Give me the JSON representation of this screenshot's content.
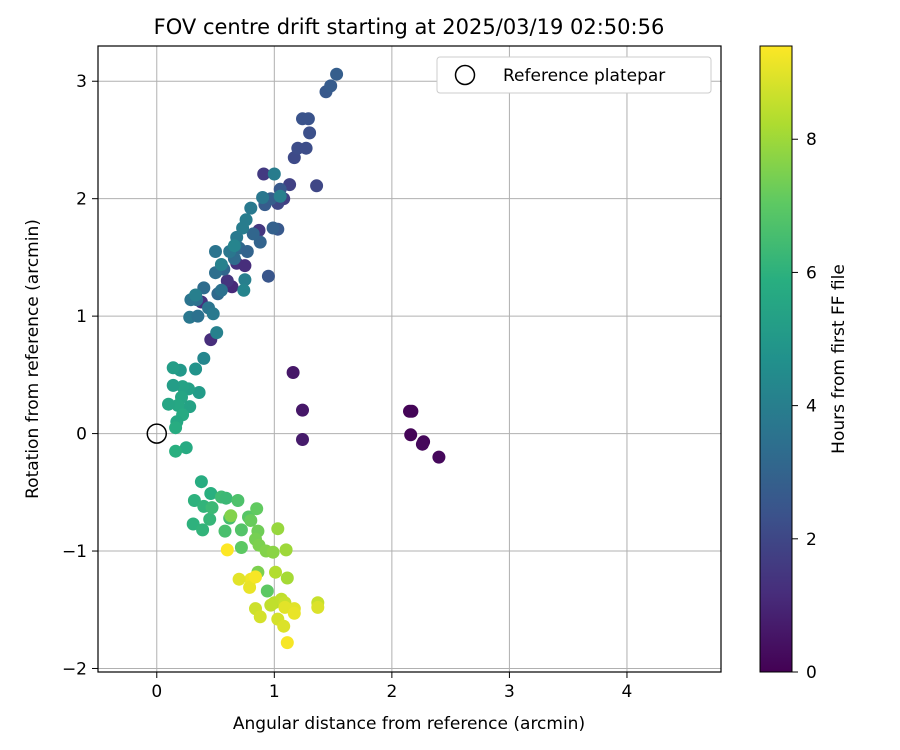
{
  "chart_data": {
    "type": "scatter",
    "title": "FOV centre drift starting at 2025/03/19 02:50:56",
    "xlabel": "Angular distance from reference (arcmin)",
    "ylabel": "Rotation from reference (arcmin)",
    "xlim": [
      -0.5,
      4.8
    ],
    "ylim": [
      -2.03,
      3.3
    ],
    "xticks": [
      0,
      1,
      2,
      3,
      4
    ],
    "yticks": [
      -2,
      -1,
      0,
      1,
      2,
      3
    ],
    "grid": true,
    "legend": {
      "placement": "top-right",
      "entries": [
        "Reference platepar"
      ]
    },
    "reference_point": {
      "name": "Reference platepar",
      "x": 0,
      "y": 0
    },
    "colorbar": {
      "label": "Hours from first FF file",
      "colormap": "viridis",
      "range": [
        0,
        9.4
      ],
      "ticks": [
        0,
        2,
        4,
        6,
        8
      ]
    },
    "series": [
      {
        "points": [
          {
            "x": 2.15,
            "y": 0.19,
            "c": 0.05
          },
          {
            "x": 2.17,
            "y": 0.19,
            "c": 0.1
          },
          {
            "x": 2.16,
            "y": -0.01,
            "c": 0.1
          },
          {
            "x": 2.27,
            "y": -0.07,
            "c": 0.15
          },
          {
            "x": 2.26,
            "y": -0.09,
            "c": 0.2
          },
          {
            "x": 2.4,
            "y": -0.2,
            "c": 0.2
          },
          {
            "x": 1.16,
            "y": 0.52,
            "c": 0.6
          },
          {
            "x": 1.24,
            "y": 0.2,
            "c": 0.6
          },
          {
            "x": 1.24,
            "y": -0.05,
            "c": 0.7
          },
          {
            "x": 0.46,
            "y": 0.8,
            "c": 1.2
          },
          {
            "x": 0.38,
            "y": 1.12,
            "c": 1.3
          },
          {
            "x": 0.64,
            "y": 1.25,
            "c": 1.1
          },
          {
            "x": 0.6,
            "y": 1.3,
            "c": 1.4
          },
          {
            "x": 0.68,
            "y": 1.45,
            "c": 1.3
          },
          {
            "x": 0.75,
            "y": 1.43,
            "c": 1.2
          },
          {
            "x": 0.87,
            "y": 1.73,
            "c": 1.5
          },
          {
            "x": 0.91,
            "y": 2.21,
            "c": 1.6
          },
          {
            "x": 1.08,
            "y": 2.0,
            "c": 1.7
          },
          {
            "x": 1.13,
            "y": 2.12,
            "c": 1.8
          },
          {
            "x": 1.03,
            "y": 1.96,
            "c": 2.0
          },
          {
            "x": 1.17,
            "y": 2.35,
            "c": 2.1
          },
          {
            "x": 1.2,
            "y": 2.43,
            "c": 2.2
          },
          {
            "x": 1.27,
            "y": 2.43,
            "c": 2.2
          },
          {
            "x": 1.36,
            "y": 2.11,
            "c": 2.0
          },
          {
            "x": 1.3,
            "y": 2.56,
            "c": 2.3
          },
          {
            "x": 1.24,
            "y": 2.68,
            "c": 2.4
          },
          {
            "x": 1.29,
            "y": 2.68,
            "c": 2.4
          },
          {
            "x": 1.44,
            "y": 2.91,
            "c": 2.6
          },
          {
            "x": 1.48,
            "y": 2.96,
            "c": 2.7
          },
          {
            "x": 1.53,
            "y": 3.06,
            "c": 2.8
          },
          {
            "x": 0.95,
            "y": 1.34,
            "c": 2.5
          },
          {
            "x": 1.03,
            "y": 1.74,
            "c": 2.6
          },
          {
            "x": 0.99,
            "y": 1.75,
            "c": 2.9
          },
          {
            "x": 0.92,
            "y": 1.95,
            "c": 2.7
          },
          {
            "x": 0.97,
            "y": 2.0,
            "c": 2.8
          },
          {
            "x": 1.05,
            "y": 2.08,
            "c": 2.6
          },
          {
            "x": 0.88,
            "y": 1.63,
            "c": 3.0
          },
          {
            "x": 0.82,
            "y": 1.7,
            "c": 3.1
          },
          {
            "x": 0.7,
            "y": 1.58,
            "c": 3.2
          },
          {
            "x": 0.77,
            "y": 1.55,
            "c": 3.0
          },
          {
            "x": 0.66,
            "y": 1.49,
            "c": 3.3
          },
          {
            "x": 0.57,
            "y": 1.4,
            "c": 3.1
          },
          {
            "x": 0.5,
            "y": 1.37,
            "c": 3.4
          },
          {
            "x": 0.52,
            "y": 1.19,
            "c": 3.2
          },
          {
            "x": 0.55,
            "y": 1.22,
            "c": 3.5
          },
          {
            "x": 0.4,
            "y": 1.24,
            "c": 3.3
          },
          {
            "x": 0.34,
            "y": 1.14,
            "c": 3.4
          },
          {
            "x": 0.29,
            "y": 1.14,
            "c": 3.6
          },
          {
            "x": 0.28,
            "y": 0.99,
            "c": 3.7
          },
          {
            "x": 0.35,
            "y": 1.0,
            "c": 3.5
          },
          {
            "x": 0.44,
            "y": 1.07,
            "c": 3.6
          },
          {
            "x": 0.48,
            "y": 1.02,
            "c": 3.8
          },
          {
            "x": 0.5,
            "y": 1.55,
            "c": 3.6
          },
          {
            "x": 0.62,
            "y": 1.55,
            "c": 3.7
          },
          {
            "x": 0.68,
            "y": 1.67,
            "c": 3.8
          },
          {
            "x": 0.73,
            "y": 1.75,
            "c": 3.9
          },
          {
            "x": 0.76,
            "y": 1.82,
            "c": 3.9
          },
          {
            "x": 0.8,
            "y": 1.92,
            "c": 3.8
          },
          {
            "x": 0.9,
            "y": 2.01,
            "c": 3.7
          },
          {
            "x": 1.0,
            "y": 2.21,
            "c": 3.9
          },
          {
            "x": 0.75,
            "y": 1.31,
            "c": 4.0
          },
          {
            "x": 0.74,
            "y": 1.22,
            "c": 4.2
          },
          {
            "x": 0.51,
            "y": 0.86,
            "c": 4.1
          },
          {
            "x": 0.33,
            "y": 1.18,
            "c": 4.0
          },
          {
            "x": 0.55,
            "y": 1.44,
            "c": 4.1
          },
          {
            "x": 0.66,
            "y": 1.6,
            "c": 4.2
          },
          {
            "x": 0.4,
            "y": 0.64,
            "c": 4.3
          },
          {
            "x": 1.05,
            "y": 2.02,
            "c": 4.0
          },
          {
            "x": 0.33,
            "y": 0.55,
            "c": 4.8
          },
          {
            "x": 0.2,
            "y": 0.54,
            "c": 5.0
          },
          {
            "x": 0.14,
            "y": 0.56,
            "c": 5.2
          },
          {
            "x": 0.36,
            "y": 0.35,
            "c": 5.1
          },
          {
            "x": 0.27,
            "y": 0.38,
            "c": 5.3
          },
          {
            "x": 0.22,
            "y": 0.4,
            "c": 5.4
          },
          {
            "x": 0.14,
            "y": 0.41,
            "c": 5.2
          },
          {
            "x": 0.21,
            "y": 0.31,
            "c": 5.5
          },
          {
            "x": 0.28,
            "y": 0.23,
            "c": 5.4
          },
          {
            "x": 0.18,
            "y": 0.24,
            "c": 5.6
          },
          {
            "x": 0.1,
            "y": 0.25,
            "c": 5.5
          },
          {
            "x": 0.22,
            "y": 0.16,
            "c": 5.7
          },
          {
            "x": 0.17,
            "y": 0.1,
            "c": 5.6
          },
          {
            "x": 0.16,
            "y": 0.05,
            "c": 5.8
          },
          {
            "x": 0.25,
            "y": -0.12,
            "c": 5.7
          },
          {
            "x": 0.16,
            "y": -0.15,
            "c": 5.9
          },
          {
            "x": 0.38,
            "y": -0.41,
            "c": 5.8
          },
          {
            "x": 0.32,
            "y": -0.57,
            "c": 6.0
          },
          {
            "x": 0.46,
            "y": -0.51,
            "c": 5.9
          },
          {
            "x": 0.4,
            "y": -0.62,
            "c": 6.1
          },
          {
            "x": 0.45,
            "y": -0.73,
            "c": 6.2
          },
          {
            "x": 0.31,
            "y": -0.77,
            "c": 6.0
          },
          {
            "x": 0.39,
            "y": -0.82,
            "c": 6.1
          },
          {
            "x": 0.47,
            "y": -0.63,
            "c": 6.3
          },
          {
            "x": 0.55,
            "y": -0.54,
            "c": 6.4
          },
          {
            "x": 0.59,
            "y": -0.55,
            "c": 6.3
          },
          {
            "x": 0.62,
            "y": -0.72,
            "c": 6.5
          },
          {
            "x": 0.58,
            "y": -0.83,
            "c": 6.6
          },
          {
            "x": 0.69,
            "y": -0.57,
            "c": 6.7
          },
          {
            "x": 0.72,
            "y": -0.82,
            "c": 6.8
          },
          {
            "x": 0.78,
            "y": -0.71,
            "c": 6.9
          },
          {
            "x": 0.72,
            "y": -0.97,
            "c": 7.0
          },
          {
            "x": 0.85,
            "y": -0.64,
            "c": 7.1
          },
          {
            "x": 0.8,
            "y": -0.74,
            "c": 7.2
          },
          {
            "x": 0.86,
            "y": -0.83,
            "c": 7.3
          },
          {
            "x": 0.84,
            "y": -0.9,
            "c": 7.4
          },
          {
            "x": 0.87,
            "y": -0.95,
            "c": 7.5
          },
          {
            "x": 0.93,
            "y": -1.0,
            "c": 7.6
          },
          {
            "x": 0.99,
            "y": -1.01,
            "c": 7.7
          },
          {
            "x": 0.63,
            "y": -0.7,
            "c": 7.6
          },
          {
            "x": 1.03,
            "y": -0.81,
            "c": 7.9
          },
          {
            "x": 1.1,
            "y": -0.99,
            "c": 8.0
          },
          {
            "x": 1.11,
            "y": -1.23,
            "c": 8.1
          },
          {
            "x": 0.86,
            "y": -1.18,
            "c": 7.5
          },
          {
            "x": 0.94,
            "y": -1.34,
            "c": 7.0
          },
          {
            "x": 1.01,
            "y": -1.18,
            "c": 8.3
          },
          {
            "x": 1.0,
            "y": -1.44,
            "c": 8.4
          },
          {
            "x": 0.97,
            "y": -1.46,
            "c": 8.5
          },
          {
            "x": 1.06,
            "y": -1.41,
            "c": 8.5
          },
          {
            "x": 1.09,
            "y": -1.44,
            "c": 8.6
          },
          {
            "x": 0.84,
            "y": -1.49,
            "c": 8.7
          },
          {
            "x": 0.88,
            "y": -1.56,
            "c": 8.8
          },
          {
            "x": 1.03,
            "y": -1.58,
            "c": 8.8
          },
          {
            "x": 1.08,
            "y": -1.64,
            "c": 8.9
          },
          {
            "x": 1.09,
            "y": -1.48,
            "c": 9.0
          },
          {
            "x": 1.17,
            "y": -1.49,
            "c": 9.0
          },
          {
            "x": 1.17,
            "y": -1.53,
            "c": 9.1
          },
          {
            "x": 1.11,
            "y": -1.78,
            "c": 9.3
          },
          {
            "x": 1.37,
            "y": -1.44,
            "c": 8.6
          },
          {
            "x": 1.37,
            "y": -1.48,
            "c": 8.9
          },
          {
            "x": 0.8,
            "y": -1.24,
            "c": 9.2
          },
          {
            "x": 0.79,
            "y": -1.31,
            "c": 9.1
          },
          {
            "x": 0.84,
            "y": -1.22,
            "c": 9.3
          },
          {
            "x": 0.7,
            "y": -1.24,
            "c": 9.0
          },
          {
            "x": 0.6,
            "y": -0.99,
            "c": 9.4
          }
        ]
      }
    ]
  }
}
